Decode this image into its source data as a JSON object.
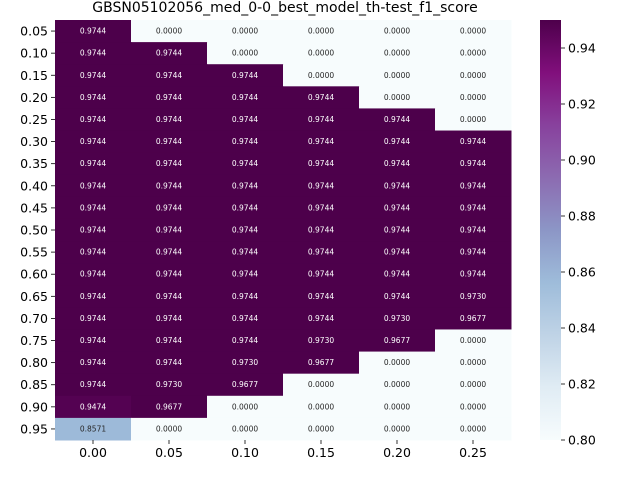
{
  "chart_data": {
    "type": "heatmap",
    "title": "GBSN05102056_med_0-0_best_model_th-test_f1_score",
    "xlabel": "",
    "ylabel": "",
    "x_categories": [
      "0.00",
      "0.05",
      "0.10",
      "0.15",
      "0.20",
      "0.25"
    ],
    "y_categories": [
      "0.05",
      "0.10",
      "0.15",
      "0.20",
      "0.25",
      "0.30",
      "0.35",
      "0.40",
      "0.45",
      "0.50",
      "0.55",
      "0.60",
      "0.65",
      "0.70",
      "0.75",
      "0.80",
      "0.85",
      "0.90",
      "0.95"
    ],
    "values": [
      [
        0.9744,
        0.0,
        0.0,
        0.0,
        0.0,
        0.0
      ],
      [
        0.9744,
        0.9744,
        0.0,
        0.0,
        0.0,
        0.0
      ],
      [
        0.9744,
        0.9744,
        0.9744,
        0.0,
        0.0,
        0.0
      ],
      [
        0.9744,
        0.9744,
        0.9744,
        0.9744,
        0.0,
        0.0
      ],
      [
        0.9744,
        0.9744,
        0.9744,
        0.9744,
        0.9744,
        0.0
      ],
      [
        0.9744,
        0.9744,
        0.9744,
        0.9744,
        0.9744,
        0.9744
      ],
      [
        0.9744,
        0.9744,
        0.9744,
        0.9744,
        0.9744,
        0.9744
      ],
      [
        0.9744,
        0.9744,
        0.9744,
        0.9744,
        0.9744,
        0.9744
      ],
      [
        0.9744,
        0.9744,
        0.9744,
        0.9744,
        0.9744,
        0.9744
      ],
      [
        0.9744,
        0.9744,
        0.9744,
        0.9744,
        0.9744,
        0.9744
      ],
      [
        0.9744,
        0.9744,
        0.9744,
        0.9744,
        0.9744,
        0.9744
      ],
      [
        0.9744,
        0.9744,
        0.9744,
        0.9744,
        0.9744,
        0.9744
      ],
      [
        0.9744,
        0.9744,
        0.9744,
        0.9744,
        0.9744,
        0.973
      ],
      [
        0.9744,
        0.9744,
        0.9744,
        0.9744,
        0.973,
        0.9677
      ],
      [
        0.9744,
        0.9744,
        0.9744,
        0.973,
        0.9677,
        0.0
      ],
      [
        0.9744,
        0.9744,
        0.973,
        0.9677,
        0.0,
        0.0
      ],
      [
        0.9744,
        0.973,
        0.9677,
        0.0,
        0.0,
        0.0
      ],
      [
        0.9474,
        0.9677,
        0.0,
        0.0,
        0.0,
        0.0
      ],
      [
        0.8571,
        0.0,
        0.0,
        0.0,
        0.0,
        0.0
      ]
    ],
    "value_format": "0.0000",
    "colormap": "BuPu",
    "color_range": [
      0.8,
      0.95
    ],
    "colorbar_ticks": [
      "0.80",
      "0.82",
      "0.84",
      "0.86",
      "0.88",
      "0.90",
      "0.92",
      "0.94"
    ],
    "colorbar_tick_values": [
      0.8,
      0.82,
      0.84,
      0.86,
      0.88,
      0.9,
      0.92,
      0.94
    ],
    "colorbar_stops": [
      "#f7fcfd",
      "#e0ecf4",
      "#bfd3e6",
      "#9ebcda",
      "#8c96c6",
      "#8c6bb1",
      "#88419d",
      "#810f7c",
      "#4d004b"
    ],
    "text_dark": "#262626",
    "text_light": "#ffffff",
    "grid": false,
    "legend": "colorbar-right"
  }
}
